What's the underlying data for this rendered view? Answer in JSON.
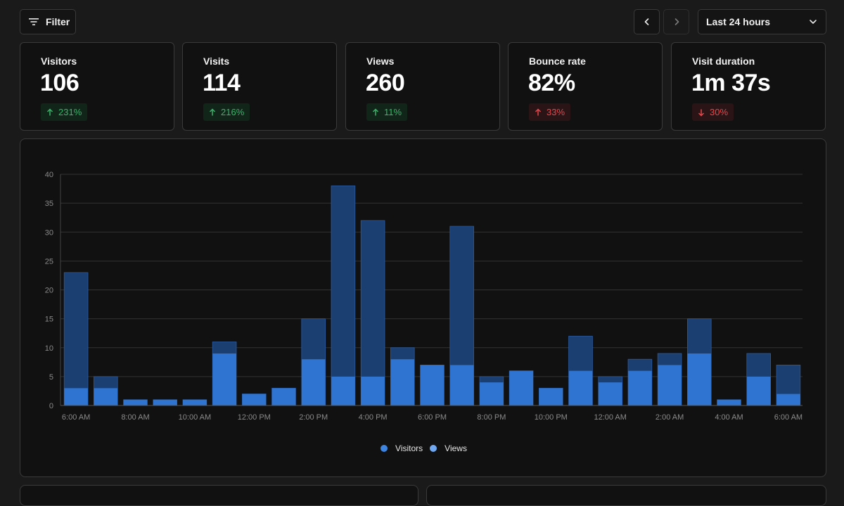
{
  "toolbar": {
    "filter_label": "Filter",
    "range_value": "Last 24 hours"
  },
  "metrics": [
    {
      "title": "Visitors",
      "value": "106",
      "change": "231%",
      "direction": "up"
    },
    {
      "title": "Visits",
      "value": "114",
      "change": "216%",
      "direction": "up"
    },
    {
      "title": "Views",
      "value": "260",
      "change": "11%",
      "direction": "up"
    },
    {
      "title": "Bounce rate",
      "value": "82%",
      "change": "33%",
      "direction": "up-bad"
    },
    {
      "title": "Visit duration",
      "value": "1m 37s",
      "change": "30%",
      "direction": "down-bad"
    }
  ],
  "colors": {
    "visitors": "#2f74d0",
    "views": "#1c3f72",
    "positive": "#3bb36a",
    "negative": "#e5484d"
  },
  "chart_data": {
    "type": "bar",
    "stacked_overlay": true,
    "ylim": [
      0,
      40
    ],
    "yticks": [
      0,
      5,
      10,
      15,
      20,
      25,
      30,
      35,
      40
    ],
    "x_tick_labels": [
      "6:00 AM",
      "8:00 AM",
      "10:00 AM",
      "12:00 PM",
      "2:00 PM",
      "4:00 PM",
      "6:00 PM",
      "8:00 PM",
      "10:00 PM",
      "12:00 AM",
      "2:00 AM",
      "4:00 AM",
      "6:00 AM"
    ],
    "categories": [
      "6 AM",
      "7 AM",
      "8 AM",
      "9 AM",
      "10 AM",
      "11 AM",
      "12 PM",
      "1 PM",
      "2 PM",
      "3 PM",
      "4 PM",
      "5 PM",
      "6 PM",
      "7 PM",
      "8 PM",
      "9 PM",
      "10 PM",
      "11 PM",
      "12 AM",
      "1 AM",
      "2 AM",
      "3 AM",
      "4 AM",
      "5 AM",
      "6 AM"
    ],
    "series": [
      {
        "name": "Visitors",
        "values": [
          3,
          3,
          1,
          1,
          1,
          9,
          2,
          3,
          8,
          5,
          5,
          8,
          7,
          7,
          4,
          6,
          3,
          6,
          4,
          6,
          7,
          9,
          1,
          5,
          2
        ]
      },
      {
        "name": "Views",
        "values": [
          23,
          5,
          1,
          1,
          1,
          11,
          2,
          3,
          15,
          38,
          32,
          10,
          7,
          31,
          5,
          6,
          3,
          12,
          5,
          8,
          9,
          15,
          1,
          9,
          7
        ]
      }
    ],
    "grid": true,
    "legend": "bottom"
  }
}
